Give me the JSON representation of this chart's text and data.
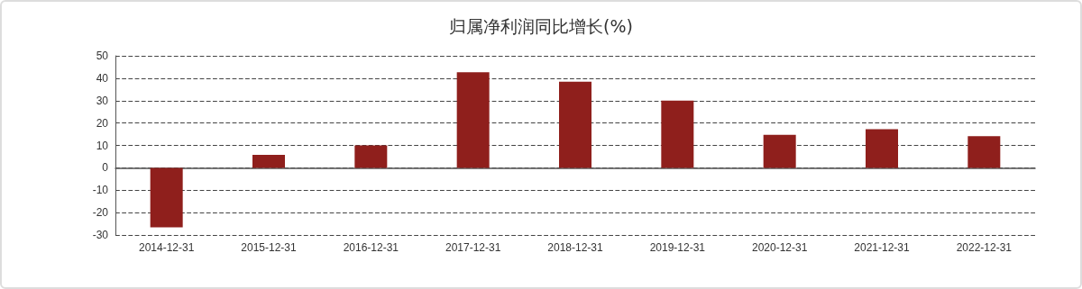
{
  "chart_data": {
    "type": "bar",
    "title": "归属净利润同比增长(%)",
    "categories": [
      "2014-12-31",
      "2015-12-31",
      "2016-12-31",
      "2017-12-31",
      "2018-12-31",
      "2019-12-31",
      "2020-12-31",
      "2021-12-31",
      "2022-12-31"
    ],
    "values": [
      -26.6,
      5.8,
      10,
      42.7,
      38.4,
      30,
      14.7,
      17.2,
      14.1
    ],
    "color": "#8f1f1c",
    "ylim": [
      -30,
      50
    ],
    "yticks": [
      -30,
      -20,
      -10,
      0,
      10,
      20,
      30,
      40,
      50
    ],
    "grid": "y",
    "line_style": "dashed"
  }
}
